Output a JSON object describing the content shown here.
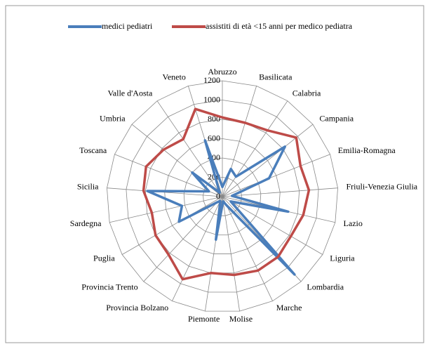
{
  "chart_data": {
    "type": "radar",
    "categories": [
      "Abruzzo",
      "Basilicata",
      "Calabria",
      "Campania",
      "Emilia-Romagna",
      "Friuli-Venezia Giulia",
      "Lazio",
      "Liguria",
      "Lombardia",
      "Marche",
      "Molise",
      "Piemonte",
      "Provincia Bolzano",
      "Provincia Trento",
      "Puglia",
      "Sardegna",
      "Sicilia",
      "Toscana",
      "Umbria",
      "Valle d'Aosta",
      "Veneto"
    ],
    "series": [
      {
        "name": "medici pediatri",
        "color": "#4a7ebb",
        "values": [
          100,
          300,
          250,
          830,
          520,
          100,
          700,
          100,
          1100,
          100,
          50,
          450,
          50,
          80,
          520,
          430,
          780,
          150,
          400,
          50,
          610
        ]
      },
      {
        "name": "assistiti di età <15 anni per medico pediatra",
        "color": "#be4b48",
        "values": [
          820,
          800,
          830,
          980,
          870,
          900,
          860,
          820,
          850,
          850,
          820,
          800,
          950,
          820,
          800,
          750,
          820,
          850,
          780,
          720,
          950
        ]
      }
    ],
    "ylim": [
      0,
      1200
    ],
    "yticks": [
      0,
      200,
      400,
      600,
      800,
      1000,
      1200
    ],
    "grid": true,
    "legend": "top"
  }
}
